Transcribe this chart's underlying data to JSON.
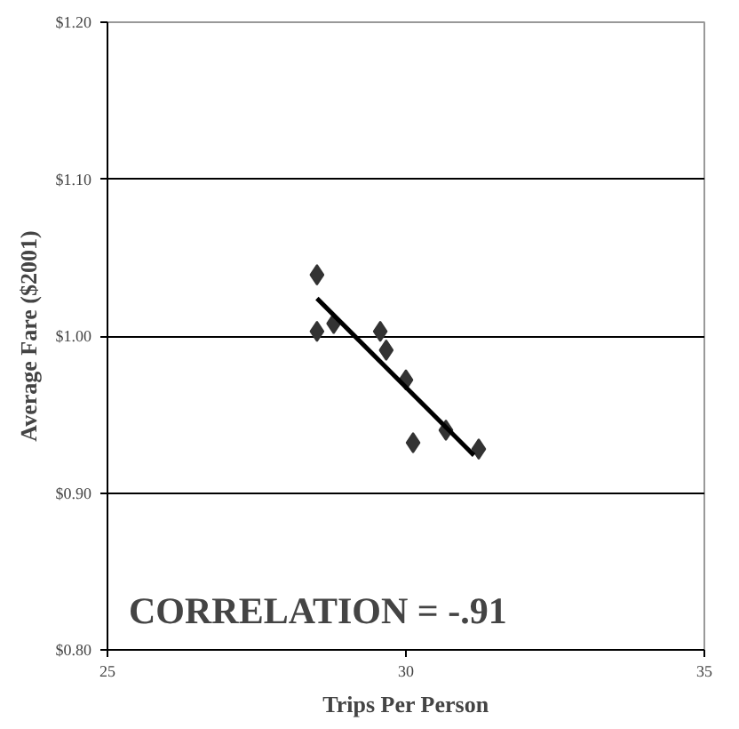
{
  "chart_data": {
    "type": "scatter",
    "xlabel": "Trips Per Person",
    "ylabel": "Average Fare ($2001)",
    "annotations": [
      "CORRELATION = -.91"
    ],
    "xlim": [
      25,
      35
    ],
    "xticks": [
      25,
      30,
      35
    ],
    "ylim": [
      0.8,
      1.2
    ],
    "yticks": [
      {
        "value": 0.8,
        "label": "$0.80"
      },
      {
        "value": 0.9,
        "label": "$0.90"
      },
      {
        "value": 1.0,
        "label": "$1.00"
      },
      {
        "value": 1.1,
        "label": "$1.10"
      },
      {
        "value": 1.2,
        "label": "$1.20"
      }
    ],
    "grid": "y",
    "marker": "diamond",
    "series": [
      {
        "color": "#333333",
        "x": [
          28.51,
          28.51,
          28.79,
          29.57,
          29.67,
          30.0,
          30.12,
          30.67,
          31.22
        ],
        "values": [
          1.039,
          1.003,
          1.008,
          1.003,
          0.991,
          0.972,
          0.932,
          0.94,
          0.928
        ]
      },
      {
        "type": "line",
        "color": "#000000",
        "marker": "none",
        "x": [
          28.51,
          31.14
        ],
        "values": [
          1.024,
          0.924
        ]
      }
    ]
  }
}
